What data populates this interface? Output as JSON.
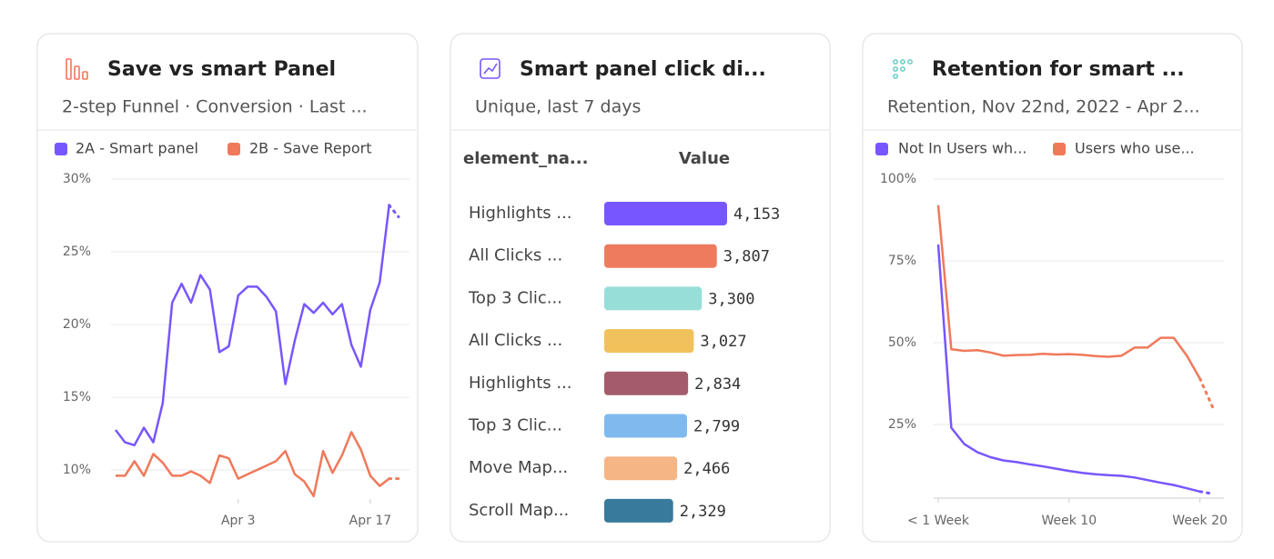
{
  "chart_data": [
    {
      "type": "line",
      "title": "Save vs smart Panel",
      "subtitle": "2-step Funnel · Conversion · Last ...",
      "categories": [
        null,
        null,
        null,
        null,
        null,
        null,
        null,
        null,
        null,
        null,
        null,
        null,
        null,
        "Apr 3",
        null,
        null,
        null,
        null,
        null,
        null,
        null,
        null,
        null,
        null,
        null,
        null,
        null,
        "Apr 17",
        null,
        null,
        null
      ],
      "series": [
        {
          "name": "2A - Smart panel",
          "color": "#7856ff",
          "values": [
            12.75,
            11.9,
            11.7,
            12.9,
            11.9,
            14.6,
            21.5,
            22.8,
            21.5,
            23.4,
            22.4,
            18.1,
            18.5,
            22,
            22.6,
            22.6,
            21.9,
            20.9,
            15.9,
            18.9,
            21.4,
            20.8,
            21.5,
            20.7,
            21.4,
            18.6,
            17.1,
            21,
            22.9,
            28.2,
            27.4
          ]
        },
        {
          "name": "2B - Save Report",
          "color": "#f0795a",
          "values": [
            9.6,
            9.6,
            10.6,
            9.6,
            11.1,
            10.5,
            9.6,
            9.6,
            9.9,
            9.6,
            9.1,
            11,
            10.8,
            9.4,
            9.7,
            10,
            10.3,
            10.6,
            11.3,
            9.7,
            9.2,
            8.2,
            11.3,
            9.8,
            11,
            12.6,
            11.4,
            9.6,
            8.9,
            9.4,
            9.4
          ]
        }
      ],
      "ylim": [
        8,
        30
      ],
      "yticks": [
        {
          "value": 10,
          "label": "10%"
        },
        {
          "value": 15,
          "label": "15%"
        },
        {
          "value": 20,
          "label": "20%"
        },
        {
          "value": 25,
          "label": "25%"
        },
        {
          "value": 30,
          "label": "30%"
        }
      ],
      "grid": true
    },
    {
      "type": "bar",
      "title": "Smart panel click di...",
      "subtitle": "Unique, last 7 days",
      "category_header": "element_na...",
      "value_header": "Value",
      "categories": [
        "Highlights ...",
        "All Clicks ...",
        "Top 3 Clic...",
        "All Clicks ...",
        "Highlights ...",
        "Top 3 Clic...",
        "Move Map...",
        "Scroll Map..."
      ],
      "values": [
        4153,
        3807,
        3300,
        3027,
        2834,
        2799,
        2466,
        2329
      ],
      "value_labels": [
        "4,153",
        "3,807",
        "3,300",
        "3,027",
        "2,834",
        "2,799",
        "2,466",
        "2,329"
      ],
      "colors": [
        "#7856ff",
        "#ee7b5e",
        "#97ded9",
        "#f1c15b",
        "#a45b6b",
        "#80b9ee",
        "#f5b585",
        "#377a9c"
      ]
    },
    {
      "type": "line",
      "title": "Retention for smart ...",
      "subtitle": "Retention, Nov 22nd, 2022 - Apr 2...",
      "categories": [
        "< 1 Week",
        null,
        null,
        null,
        null,
        null,
        null,
        null,
        null,
        null,
        "Week 10",
        null,
        null,
        null,
        null,
        null,
        null,
        null,
        null,
        null,
        "Week 20",
        null
      ],
      "series": [
        {
          "name": "Not In Users wh...",
          "color": "#7856ff",
          "values": [
            80,
            24,
            19,
            16.5,
            15,
            14,
            13.5,
            12.8,
            12.2,
            11.5,
            10.8,
            10.2,
            9.8,
            9.5,
            9.3,
            8.8,
            8,
            7.2,
            6.5,
            5.5,
            4.5,
            3.8
          ]
        },
        {
          "name": "Users who use...",
          "color": "#f0795a",
          "values": [
            92,
            48,
            47.5,
            47.7,
            47,
            46,
            46.2,
            46.3,
            46.6,
            46.4,
            46.5,
            46.3,
            45.9,
            45.7,
            46,
            48.5,
            48.5,
            51.5,
            51.5,
            46,
            39,
            30
          ]
        }
      ],
      "ylim": [
        0,
        100
      ],
      "yticks": [
        {
          "value": 25,
          "label": "25%"
        },
        {
          "value": 50,
          "label": "50%"
        },
        {
          "value": 75,
          "label": "75%"
        },
        {
          "value": 100,
          "label": "100%"
        }
      ],
      "grid": true
    }
  ]
}
